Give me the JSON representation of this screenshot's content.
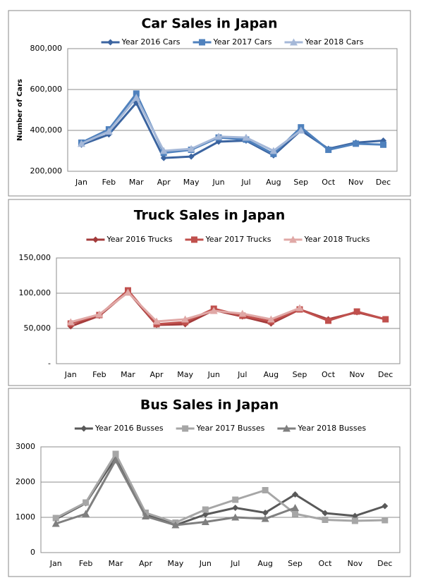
{
  "chart_data": [
    {
      "type": "line",
      "title": "Car Sales in Japan",
      "y_label": "Number of Cars",
      "categories": [
        "Jan",
        "Feb",
        "Mar",
        "Apr",
        "May",
        "Jun",
        "Jul",
        "Aug",
        "Sep",
        "Oct",
        "Nov",
        "Dec"
      ],
      "ylim": [
        200000,
        800000
      ],
      "yticks": [
        {
          "value": 200000,
          "label": "200,000"
        },
        {
          "value": 400000,
          "label": "400,000"
        },
        {
          "value": 600000,
          "label": "600,000"
        },
        {
          "value": 800000,
          "label": "800,000"
        }
      ],
      "grid": true,
      "series": [
        {
          "name": "Year 2016 Cars",
          "color": "#3b64a0",
          "marker": "diamond",
          "values": [
            330000,
            380000,
            535000,
            265000,
            272000,
            345000,
            350000,
            278000,
            400000,
            310000,
            340000,
            350000
          ]
        },
        {
          "name": "Year 2017 Cars",
          "color": "#4f81bd",
          "marker": "square",
          "values": [
            340000,
            405000,
            580000,
            290000,
            305000,
            365000,
            355000,
            285000,
            415000,
            305000,
            335000,
            330000
          ]
        },
        {
          "name": "Year 2018 Cars",
          "color": "#a5b8d8",
          "marker": "triangle",
          "values": [
            335000,
            395000,
            560000,
            300000,
            310000,
            370000,
            365000,
            300000,
            400000,
            null,
            null,
            null
          ]
        }
      ]
    },
    {
      "type": "line",
      "title": "Truck Sales in Japan",
      "categories": [
        "Jan",
        "Feb",
        "Mar",
        "Apr",
        "May",
        "Jun",
        "Jul",
        "Aug",
        "Sep",
        "Oct",
        "Nov",
        "Dec"
      ],
      "ylim": [
        0,
        150000
      ],
      "yticks": [
        {
          "value": 0,
          "label": "-"
        },
        {
          "value": 50000,
          "label": "50,000"
        },
        {
          "value": 100000,
          "label": "100,000"
        },
        {
          "value": 150000,
          "label": "150,000"
        }
      ],
      "grid": true,
      "series": [
        {
          "name": "Year 2016 Trucks",
          "color": "#a33b3b",
          "marker": "diamond",
          "values": [
            53000,
            68000,
            102000,
            55000,
            56000,
            76000,
            67000,
            57000,
            77000,
            63000,
            73000,
            63000
          ]
        },
        {
          "name": "Year 2017 Trucks",
          "color": "#c0504d",
          "marker": "square",
          "values": [
            57000,
            69000,
            104000,
            56000,
            59000,
            78000,
            68000,
            60000,
            77000,
            61000,
            74000,
            63000
          ]
        },
        {
          "name": "Year 2018 Trucks",
          "color": "#e0a8a6",
          "marker": "triangle",
          "values": [
            59000,
            70000,
            101000,
            60000,
            63000,
            75000,
            71000,
            63000,
            79000,
            null,
            null,
            null
          ]
        }
      ]
    },
    {
      "type": "line",
      "title": "Bus Sales in Japan",
      "categories": [
        "Jan",
        "Feb",
        "Mar",
        "Apr",
        "May",
        "Jun",
        "Jul",
        "Aug",
        "Sep",
        "Oct",
        "Nov",
        "Dec"
      ],
      "ylim": [
        0,
        3000
      ],
      "yticks": [
        0,
        1000,
        2000,
        3000
      ],
      "grid": true,
      "series": [
        {
          "name": "Year 2016 Busses",
          "color": "#595959",
          "marker": "diamond",
          "values": [
            950,
            1400,
            2700,
            1100,
            780,
            1080,
            1270,
            1130,
            1650,
            1120,
            1040,
            1320
          ]
        },
        {
          "name": "Year 2017 Busses",
          "color": "#a6a6a6",
          "marker": "square",
          "values": [
            980,
            1420,
            2800,
            1130,
            850,
            1220,
            1500,
            1770,
            1100,
            930,
            900,
            920
          ]
        },
        {
          "name": "Year 2018 Busses",
          "color": "#7f7f7f",
          "marker": "triangle",
          "values": [
            820,
            1100,
            2620,
            1030,
            780,
            870,
            1000,
            960,
            1270,
            null,
            null,
            null
          ]
        }
      ]
    }
  ]
}
